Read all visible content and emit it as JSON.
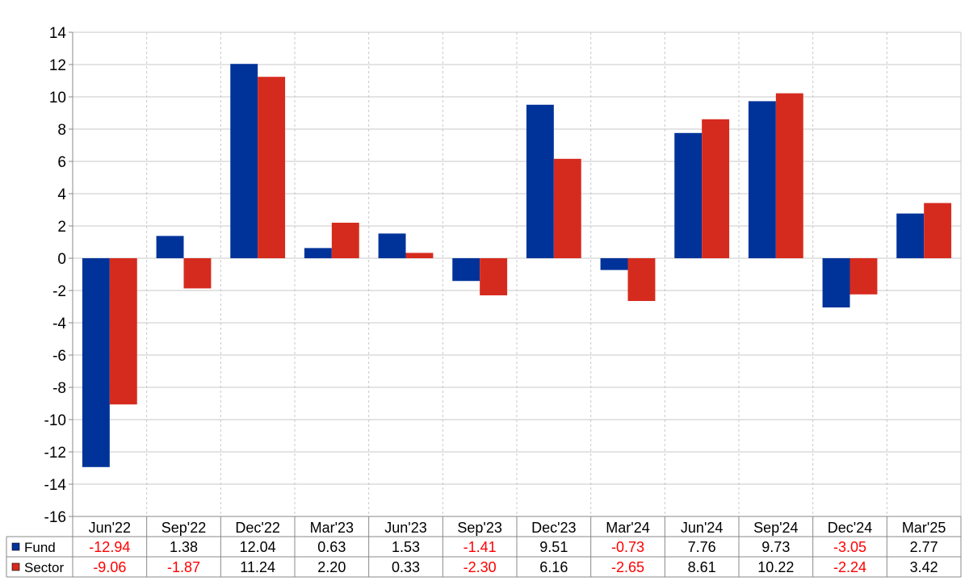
{
  "chart_data": {
    "type": "bar",
    "categories": [
      "Jun'22",
      "Sep'22",
      "Dec'22",
      "Mar'23",
      "Jun'23",
      "Sep'23",
      "Dec'23",
      "Mar'24",
      "Jun'24",
      "Sep'24",
      "Dec'24",
      "Mar'25"
    ],
    "series": [
      {
        "name": "Fund",
        "color": "#003399",
        "values": [
          -12.94,
          1.38,
          12.04,
          0.63,
          1.53,
          -1.41,
          9.51,
          -0.73,
          7.76,
          9.73,
          -3.05,
          2.77
        ],
        "labels": [
          "-12.94",
          "1.38",
          "12.04",
          "0.63",
          "1.53",
          "-1.41",
          "9.51",
          "-0.73",
          "7.76",
          "9.73",
          "-3.05",
          "2.77"
        ]
      },
      {
        "name": "Sector",
        "color": "#d52b1e",
        "values": [
          -9.06,
          -1.87,
          11.24,
          2.2,
          0.33,
          -2.3,
          6.16,
          -2.65,
          8.61,
          10.22,
          -2.24,
          3.42
        ],
        "labels": [
          "-9.06",
          "-1.87",
          "11.24",
          "2.20",
          "0.33",
          "-2.30",
          "6.16",
          "-2.65",
          "8.61",
          "10.22",
          "-2.24",
          "3.42"
        ]
      }
    ],
    "yticks": [
      "-16",
      "-14",
      "-12",
      "-10",
      "-8",
      "-6",
      "-4",
      "-2",
      "0",
      "2",
      "4",
      "6",
      "8",
      "10",
      "12",
      "14"
    ],
    "ylim": [
      -16,
      14
    ],
    "grid": true,
    "legend": "table-below",
    "negative_label_color": "#ff0000",
    "positive_label_color": "#000000"
  }
}
